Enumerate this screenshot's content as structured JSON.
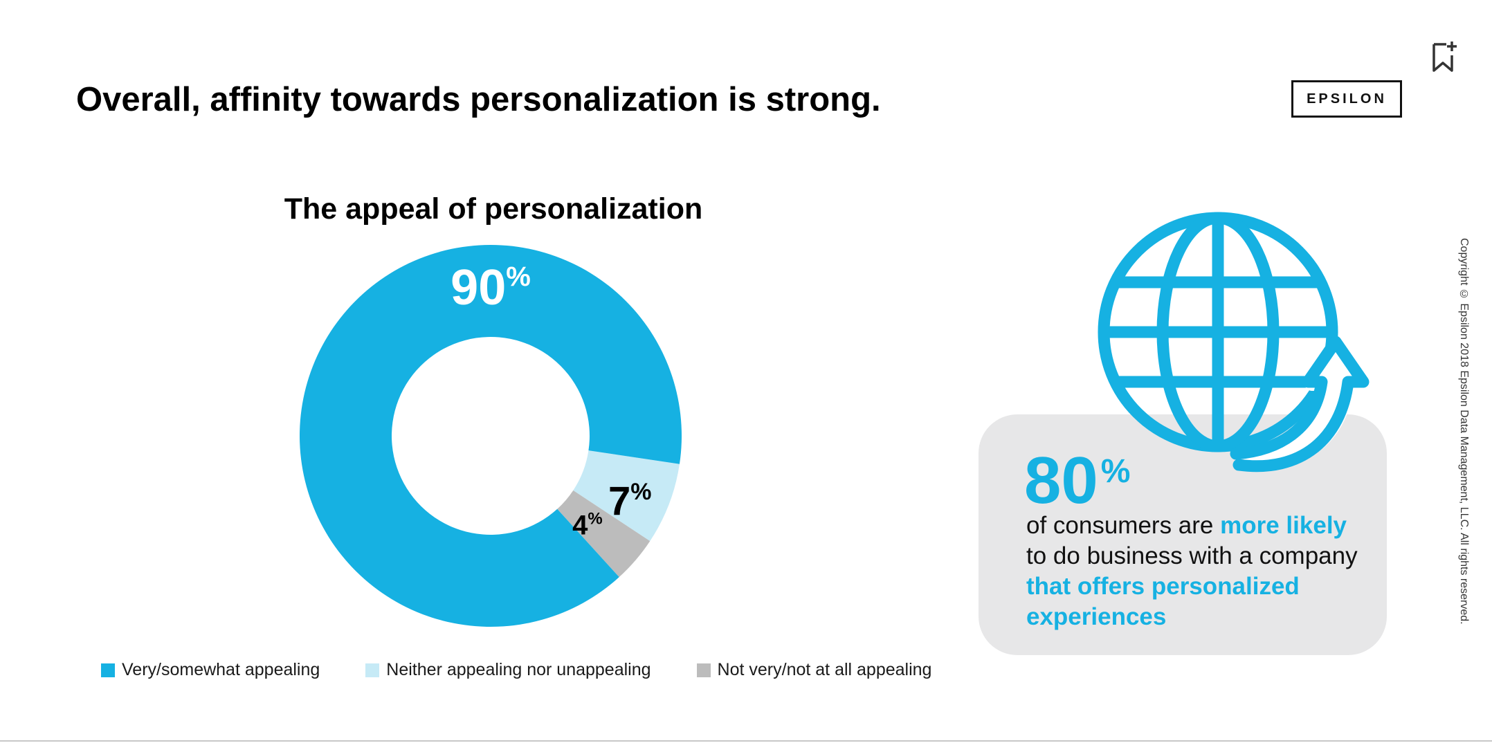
{
  "slide": {
    "title": "Overall, affinity towards personalization is strong.",
    "logo_text": "EPSILON",
    "copyright": "Copyright © Epsilon 2018 Epsilon Data Management, LLC. All rights reserved."
  },
  "chart_data": {
    "type": "pie",
    "style": "donut",
    "title": "The appeal of personalization",
    "categories": [
      "Very/somewhat appealing",
      "Neither appealing nor unappealing",
      "Not very/not at all appealing"
    ],
    "values": [
      90,
      7,
      4
    ],
    "unit": "%",
    "colors": [
      "#16b1e2",
      "#c6eaf6",
      "#bcbcbc"
    ],
    "legend_position": "bottom",
    "data_labels": [
      {
        "value": "90",
        "suffix": "%",
        "color": "#ffffff"
      },
      {
        "value": "7",
        "suffix": "%",
        "color": "#000000"
      },
      {
        "value": "4",
        "suffix": "%",
        "color": "#000000"
      }
    ]
  },
  "stat": {
    "number": "80",
    "suffix": "%",
    "text_1": "of consumers are ",
    "highlight_1": "more likely",
    "text_2": " to do business with a company ",
    "highlight_2": "that offers personalized experiences",
    "accent_color": "#16b1e2",
    "icon": "globe-with-arrow-icon"
  },
  "icons": {
    "bookmark": "bookmark-add-icon"
  }
}
